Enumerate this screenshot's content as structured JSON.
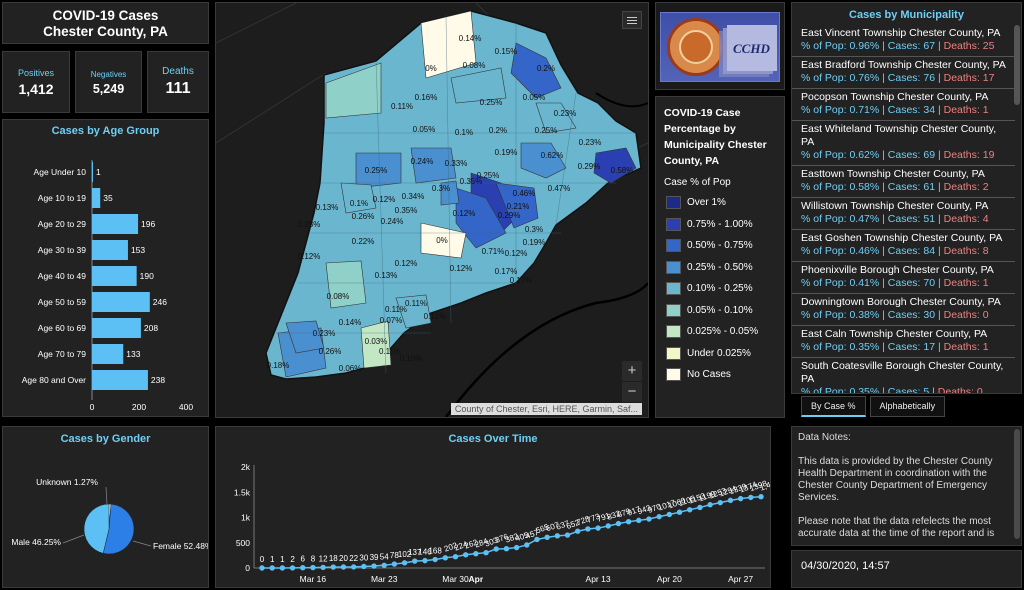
{
  "header": {
    "title_line1": "COVID-19 Cases",
    "title_line2": "Chester County, PA"
  },
  "kpis": {
    "positives": {
      "label": "Positives",
      "value": "1,412"
    },
    "negatives": {
      "label": "Negatives",
      "value": "5,249"
    },
    "deaths": {
      "label": "Deaths",
      "value": "111"
    }
  },
  "age_chart": {
    "title": "Cases by Age Group",
    "chart_data": {
      "type": "bar",
      "orientation": "horizontal",
      "categories": [
        "Age Under 10",
        "Age 10 to 19",
        "Age 20 to 29",
        "Age 30 to 39",
        "Age 40 to 49",
        "Age 50 to 59",
        "Age 60 to 69",
        "Age 70 to 79",
        "Age 80 and Over"
      ],
      "values": [
        1,
        35,
        196,
        153,
        190,
        246,
        208,
        133,
        238
      ],
      "xlim": [
        0,
        400
      ],
      "xticks": [
        "0",
        "200",
        "400"
      ],
      "color": "#5cc0f5"
    }
  },
  "gender_chart": {
    "title": "Cases by Gender",
    "chart_data": {
      "type": "pie",
      "slices": [
        {
          "label": "Unknown 1.27%",
          "value": 1.27,
          "color": "#ffffff"
        },
        {
          "label": "Female 52.48%",
          "value": 52.48,
          "color": "#2b7fe6"
        },
        {
          "label": "Male 46.25%",
          "value": 46.25,
          "color": "#5cc0f5"
        }
      ]
    }
  },
  "map": {
    "attribution": "County of Chester, Esri, HERE, Garmin, Saf...",
    "zoom_in": "+",
    "zoom_out": "−",
    "layer_icon": "list-icon",
    "labels": [
      "0.14%",
      "0.15%",
      "0%",
      "0.08%",
      "0.2%",
      "0.25%",
      "0.05%",
      "0.11%",
      "0.16%",
      "0.23%",
      "0.05%",
      "0.1%",
      "0.2%",
      "0.25%",
      "0.23%",
      "0.24%",
      "0.33%",
      "0.19%",
      "0.62%",
      "0.29%",
      "0.58%",
      "0.25%",
      "0.3%",
      "0.35%",
      "0.25%",
      "0.46%",
      "0.47%",
      "0.13%",
      "0.1%",
      "0.12%",
      "0.34%",
      "0.35%",
      "0.24%",
      "0.12%",
      "0.21%",
      "0.29%",
      "0.26%",
      "0.22%",
      "0%",
      "0.3%",
      "0.71%",
      "0.19%",
      "0.28%",
      "0.12%",
      "0.12%",
      "0.12%",
      "0.17%",
      "0.12%",
      "0.13%",
      "0.11%",
      "0.17%",
      "0.08%",
      "0.14%",
      "0.11%",
      "0.07%",
      "0.12%",
      "0.23%",
      "0.26%",
      "0.03%",
      "0.11%",
      "0.19%",
      "0.18%",
      "0.06%"
    ]
  },
  "logo": {
    "text": "CCHD"
  },
  "legend": {
    "title": "COVID-19 Case Percentage by Municipality Chester County, PA",
    "subtitle": "Case % of Pop",
    "items": [
      {
        "label": "Over 1%",
        "color": "#1d2a8a"
      },
      {
        "label": "0.75% - 1.00%",
        "color": "#2a40b0"
      },
      {
        "label": "0.50% - 0.75%",
        "color": "#3366c8"
      },
      {
        "label": "0.25% - 0.50%",
        "color": "#4a8fd0"
      },
      {
        "label": "0.10% - 0.25%",
        "color": "#6bb6cf"
      },
      {
        "label": "0.05% - 0.10%",
        "color": "#8fd0c8"
      },
      {
        "label": "0.025% - 0.05%",
        "color": "#c3e6c4"
      },
      {
        "label": "Under 0.025%",
        "color": "#f3f7c8"
      },
      {
        "label": "No Cases",
        "color": "#fffbe8"
      }
    ]
  },
  "municipalities": {
    "title": "Cases by Municipality",
    "items": [
      {
        "name": "East Vincent Township   Chester County, PA",
        "pct": "% of Pop: 0.96%",
        "cases": "Cases: 67",
        "deaths": "Deaths: 25"
      },
      {
        "name": "East Bradford Township   Chester County, PA",
        "pct": "% of Pop: 0.76%",
        "cases": "Cases: 76",
        "deaths": "Deaths: 17"
      },
      {
        "name": "Pocopson Township   Chester County, PA",
        "pct": "% of Pop: 0.71%",
        "cases": "Cases: 34",
        "deaths": "Deaths: 1"
      },
      {
        "name": "East Whiteland Township   Chester County, PA",
        "pct": "% of Pop: 0.62%",
        "cases": "Cases: 69",
        "deaths": "Deaths: 19"
      },
      {
        "name": "Easttown Township   Chester County, PA",
        "pct": "% of Pop: 0.58%",
        "cases": "Cases: 61",
        "deaths": "Deaths: 2"
      },
      {
        "name": "Willistown Township   Chester County, PA",
        "pct": "% of Pop: 0.47%",
        "cases": "Cases: 51",
        "deaths": "Deaths: 4"
      },
      {
        "name": "East Goshen Township   Chester County, PA",
        "pct": "% of Pop: 0.46%",
        "cases": "Cases: 84",
        "deaths": "Deaths: 8"
      },
      {
        "name": "Phoenixville Borough   Chester County, PA",
        "pct": "% of Pop: 0.41%",
        "cases": "Cases: 70",
        "deaths": "Deaths: 1"
      },
      {
        "name": "Downingtown Borough   Chester County, PA",
        "pct": "% of Pop: 0.38%",
        "cases": "Cases: 30",
        "deaths": "Deaths: 0"
      },
      {
        "name": "East Caln Township   Chester County, PA",
        "pct": "% of Pop: 0.35%",
        "cases": "Cases: 17",
        "deaths": "Deaths: 1"
      },
      {
        "name": "South Coatesville Borough   Chester County, PA",
        "pct": "% of Pop: 0.35%",
        "cases": "Cases: 5",
        "deaths": "Deaths: 0"
      }
    ]
  },
  "sort_tabs": {
    "by_case": "By Case %",
    "alpha": "Alphabetically"
  },
  "notes": {
    "heading": "Data Notes:",
    "p1": "This data is provided by the Chester County Health Department in coordination with the Chester County Department of Emergency Services.",
    "p2": "Please note that the data refelects the most accurate data at the time of the report and is"
  },
  "date": "04/30/2020, 14:57",
  "time_chart": {
    "title": "Cases Over Time",
    "chart_data": {
      "type": "line",
      "x": [
        "Mar 11",
        "Mar 12",
        "Mar 13",
        "Mar 14",
        "Mar 15",
        "Mar 16",
        "Mar 17",
        "Mar 18",
        "Mar 19",
        "Mar 20",
        "Mar 21",
        "Mar 22",
        "Mar 23",
        "Mar 24",
        "Mar 25",
        "Mar 26",
        "Mar 27",
        "Mar 28",
        "Mar 29",
        "Mar 30",
        "Mar 31",
        "Apr 1",
        "Apr 2",
        "Apr 3",
        "Apr 4",
        "Apr 5",
        "Apr 6",
        "Apr 7",
        "Apr 8",
        "Apr 9",
        "Apr 10",
        "Apr 11",
        "Apr 12",
        "Apr 13",
        "Apr 14",
        "Apr 15",
        "Apr 16",
        "Apr 17",
        "Apr 18",
        "Apr 19",
        "Apr 20",
        "Apr 21",
        "Apr 22",
        "Apr 23",
        "Apr 24",
        "Apr 25",
        "Apr 26",
        "Apr 27",
        "Apr 28",
        "Apr 29"
      ],
      "values": [
        0,
        1,
        1,
        2,
        6,
        8,
        12,
        18,
        20,
        22,
        30,
        39,
        54,
        78,
        102,
        137,
        146,
        168,
        202,
        224,
        262,
        284,
        303,
        376,
        382,
        405,
        457,
        565,
        607,
        637,
        652,
        728,
        773,
        791,
        832,
        879,
        917,
        943,
        970,
        1017,
        1060,
        1105,
        1153,
        1199,
        1253,
        1294,
        1339,
        1374,
        1398,
        1412
      ],
      "point_labels": [
        "0",
        "1",
        "1",
        "2",
        "6",
        "8",
        "12",
        "18",
        "20",
        "22",
        "30",
        "39",
        "54",
        "78",
        "102",
        "137",
        "146",
        "168",
        "202",
        "224",
        "262",
        "284",
        "303",
        "376",
        "382",
        "405",
        "457",
        "565",
        "607",
        "637",
        "652",
        "728",
        "773",
        "791",
        "832",
        "879",
        "917",
        "943",
        "970",
        "1017",
        "1060",
        "1105",
        "1153",
        "1199",
        "1253",
        "1294",
        "1339",
        "1374",
        "1398",
        "1,412"
      ],
      "yticks": [
        "0",
        "500",
        "1k",
        "1.5k",
        "2k"
      ],
      "ylim": [
        0,
        2000
      ],
      "xticks": [
        "Mar 16",
        "Mar 23",
        "Mar 30",
        "Apr",
        "Apr 13",
        "Apr 20",
        "Apr 27"
      ],
      "color": "#5cc0f5"
    }
  }
}
